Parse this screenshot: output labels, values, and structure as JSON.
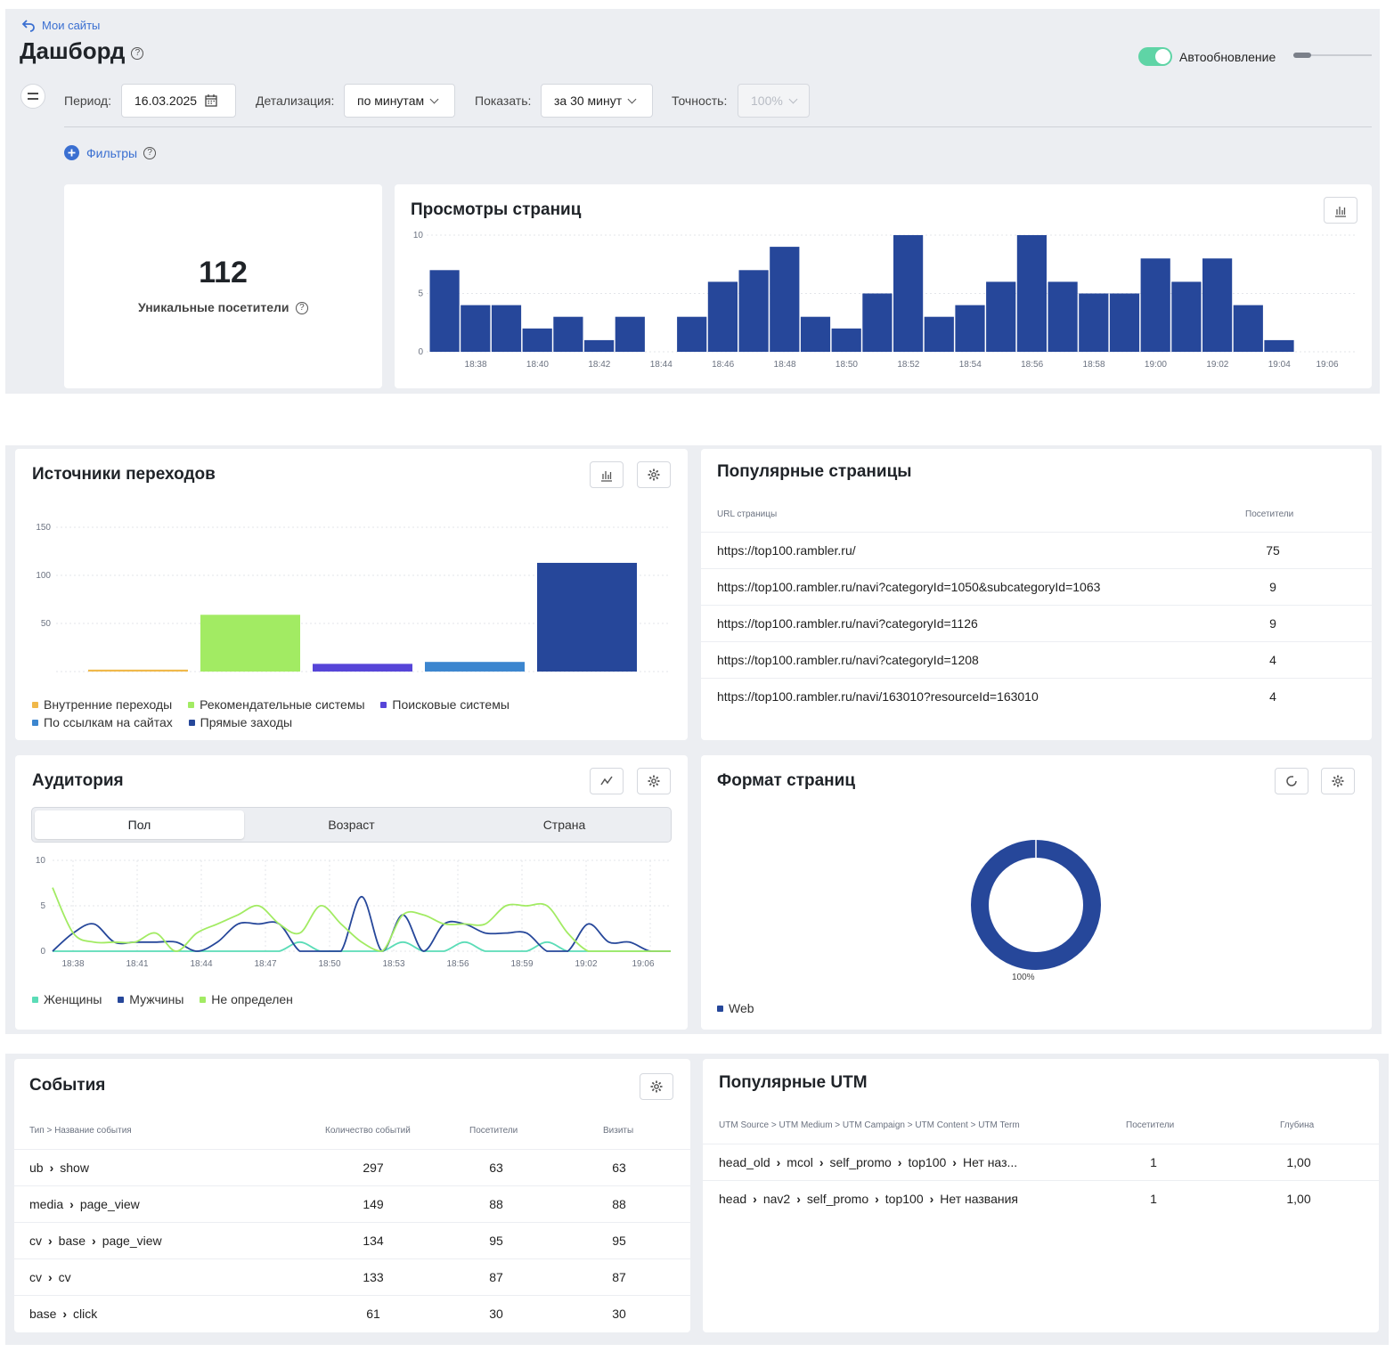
{
  "header": {
    "back_link": "Мои сайты",
    "title": "Дашборд",
    "autoupdate_label": "Автообновление"
  },
  "toolbar": {
    "period_label": "Период:",
    "period_value": "16.03.2025",
    "detail_label": "Детализация:",
    "detail_value": "по минутам",
    "show_label": "Показать:",
    "show_value": "за 30 минут",
    "accuracy_label": "Точность:",
    "accuracy_value": "100%",
    "filters_label": "Фильтры"
  },
  "unique": {
    "value": "112",
    "label": "Уникальные посетители"
  },
  "pageviews": {
    "title": "Просмотры страниц"
  },
  "sources": {
    "title": "Источники переходов",
    "legend": [
      "Внутренние переходы",
      "Рекомендательные системы",
      "Поисковые системы",
      "По ссылкам на сайтах",
      "Прямые заходы"
    ]
  },
  "popular_pages": {
    "title": "Популярные страницы",
    "col_url": "URL страницы",
    "col_visitors": "Посетители",
    "rows": [
      {
        "url": "https://top100.rambler.ru/",
        "visitors": "75"
      },
      {
        "url": "https://top100.rambler.ru/navi?categoryId=1050&subcategoryId=1063",
        "visitors": "9"
      },
      {
        "url": "https://top100.rambler.ru/navi?categoryId=1126",
        "visitors": "9"
      },
      {
        "url": "https://top100.rambler.ru/navi?categoryId=1208",
        "visitors": "4"
      },
      {
        "url": "https://top100.rambler.ru/navi/163010?resourceId=163010",
        "visitors": "4"
      }
    ]
  },
  "audience": {
    "title": "Аудитория",
    "tabs": [
      "Пол",
      "Возраст",
      "Страна"
    ],
    "legend": [
      "Женщины",
      "Мужчины",
      "Не определен"
    ]
  },
  "format": {
    "title": "Формат страниц",
    "slice_label": "100%",
    "legend": [
      "Web"
    ]
  },
  "events": {
    "title": "События",
    "col_type": "Тип > Название события",
    "col_count": "Количество событий",
    "col_visitors": "Посетители",
    "col_visits": "Визиты",
    "rows": [
      {
        "path": [
          "ub",
          "show"
        ],
        "count": "297",
        "visitors": "63",
        "visits": "63"
      },
      {
        "path": [
          "media",
          "page_view"
        ],
        "count": "149",
        "visitors": "88",
        "visits": "88"
      },
      {
        "path": [
          "cv",
          "base",
          "page_view"
        ],
        "count": "134",
        "visitors": "95",
        "visits": "95"
      },
      {
        "path": [
          "cv",
          "cv"
        ],
        "count": "133",
        "visitors": "87",
        "visits": "87"
      },
      {
        "path": [
          "base",
          "click"
        ],
        "count": "61",
        "visitors": "30",
        "visits": "30"
      }
    ]
  },
  "utm": {
    "title": "Популярные UTM",
    "col_path": "UTM Source > UTM Medium > UTM Campaign > UTM Content > UTM Term",
    "col_visitors": "Посетители",
    "col_depth": "Глубина",
    "rows": [
      {
        "path": [
          "head_old",
          "mcol",
          "self_promo",
          "top100",
          "Нет наз..."
        ],
        "visitors": "1",
        "depth": "1,00"
      },
      {
        "path": [
          "head",
          "nav2",
          "self_promo",
          "top100",
          "Нет названия"
        ],
        "visitors": "1",
        "depth": "1,00"
      }
    ]
  },
  "colors": {
    "navy": "#26479a",
    "green": "#a2eb63",
    "purple": "#5645d8",
    "blue": "#3c86cf",
    "yellow": "#f0b84a",
    "teal": "#5bdcb7",
    "toggle": "#5fd4a6",
    "link": "#3a6fd1"
  },
  "chart_data": [
    {
      "type": "bar",
      "title": "Просмотры страниц",
      "categories": [
        "18:37",
        "18:38",
        "18:39",
        "18:40",
        "18:41",
        "18:42",
        "18:43",
        "18:44",
        "18:45",
        "18:46",
        "18:47",
        "18:48",
        "18:49",
        "18:50",
        "18:51",
        "18:52",
        "18:53",
        "18:54",
        "18:55",
        "18:56",
        "18:57",
        "18:58",
        "18:59",
        "19:00",
        "19:01",
        "19:02",
        "19:03",
        "19:04",
        "19:05"
      ],
      "values": [
        7,
        4,
        4,
        2,
        3,
        1,
        3,
        0,
        3,
        6,
        7,
        9,
        3,
        2,
        5,
        10,
        3,
        4,
        6,
        10,
        6,
        5,
        5,
        8,
        6,
        8,
        4,
        1,
        0
      ],
      "x_tick_labels": [
        "18:38",
        "18:40",
        "18:42",
        "18:44",
        "18:46",
        "18:48",
        "18:50",
        "18:52",
        "18:54",
        "18:56",
        "18:58",
        "19:00",
        "19:02",
        "19:04",
        "19:06"
      ],
      "y_ticks": [
        0,
        5,
        10
      ],
      "ylim": [
        0,
        10
      ]
    },
    {
      "type": "bar",
      "title": "Источники переходов",
      "categories": [
        "Внутренние переходы",
        "Рекомендательные системы",
        "Поисковые системы",
        "По ссылкам на сайтах",
        "Прямые заходы"
      ],
      "values": [
        2,
        59,
        8,
        10,
        113
      ],
      "y_ticks": [
        50,
        100,
        150
      ],
      "ylim": [
        0,
        150
      ]
    },
    {
      "type": "line",
      "title": "Аудитория",
      "x_tick_labels": [
        "18:38",
        "18:41",
        "18:44",
        "18:47",
        "18:50",
        "18:53",
        "18:56",
        "18:59",
        "19:02",
        "19:06"
      ],
      "y_ticks": [
        0,
        5,
        10
      ],
      "ylim": [
        0,
        10
      ],
      "series": [
        {
          "name": "Женщины",
          "values": [
            0,
            0,
            0,
            0,
            0,
            0,
            0,
            0,
            0,
            0,
            0,
            0,
            1,
            0,
            0,
            0,
            0,
            1,
            0,
            0,
            1,
            0,
            0,
            0,
            1,
            0,
            0,
            0,
            0,
            0,
            0
          ]
        },
        {
          "name": "Мужчины",
          "values": [
            0,
            2,
            3,
            1,
            1,
            1,
            1,
            0,
            1,
            3,
            3,
            3,
            0,
            0,
            0,
            6,
            0,
            4,
            0,
            3,
            3,
            2,
            2,
            2,
            0,
            0,
            3,
            1,
            1,
            0,
            0
          ]
        },
        {
          "name": "Не определен",
          "values": [
            7,
            2,
            1,
            1,
            1,
            2,
            0,
            2,
            3,
            4,
            5,
            3,
            2,
            5,
            3,
            1,
            0,
            4,
            4,
            3,
            3,
            3,
            5,
            5,
            5,
            2,
            0,
            0,
            0,
            0,
            0
          ]
        }
      ]
    },
    {
      "type": "pie",
      "title": "Формат страниц",
      "categories": [
        "Web"
      ],
      "values": [
        100
      ]
    }
  ]
}
